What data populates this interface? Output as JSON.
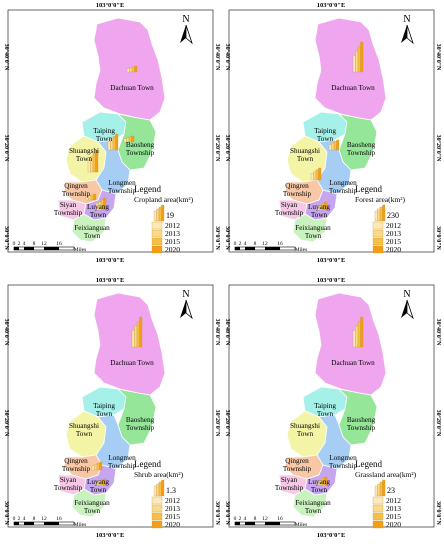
{
  "colors": {
    "dachuan": "#f0a6ef",
    "taiping": "#a6f0ea",
    "baosheng": "#96e69a",
    "shuangshi": "#f4f4a6",
    "longmen": "#a6cef4",
    "qingren": "#f8c8a6",
    "siyan": "#f6c8e6",
    "luyang": "#c7a6f0",
    "feixianguan": "#c9f2bf",
    "bar2012": "#fce9b8",
    "bar2013": "#f9d98a",
    "bar2015": "#f7bf46",
    "bar2020": "#f29e17"
  },
  "towns": {
    "dachuan": "Dachuan Town",
    "taiping_1": "Taiping",
    "taiping_2": "Town",
    "baosheng_1": "Baosheng",
    "baosheng_2": "Township",
    "shuangshi_1": "Shuangshi",
    "shuangshi_2": "Town",
    "longmen_1": "Longmen",
    "longmen_2": "Township",
    "qingren_1": "Qingren",
    "qingren_2": "Township",
    "siyan_1": "Siyan",
    "siyan_2": "Township",
    "luyang_1": "Luyang",
    "luyang_2": "Town",
    "feixianguan_1": "Feixianguan",
    "feixianguan_2": "Town"
  },
  "axis": {
    "lon_label": "103°0'0\"E",
    "lat_top": "30°40'0\"N",
    "lat_mid": "30°20'0\"N",
    "lat_bot": "30°0'0\"N"
  },
  "scale": {
    "ticks": [
      "0",
      "2",
      "4",
      "8",
      "12",
      "16"
    ],
    "unit": "Miles"
  },
  "north": "N",
  "legend": {
    "title": "Legend",
    "years": [
      "2012",
      "2013",
      "2015",
      "2020"
    ]
  },
  "panels": [
    {
      "legend_sub": "Cropland area(km²)",
      "legend_max": "19"
    },
    {
      "legend_sub": "Forest area(km²)",
      "legend_max": "230"
    },
    {
      "legend_sub": "Shrub area(km²)",
      "legend_max": "1.3"
    },
    {
      "legend_sub": "Grassland area(km²)",
      "legend_max": "23"
    }
  ]
}
